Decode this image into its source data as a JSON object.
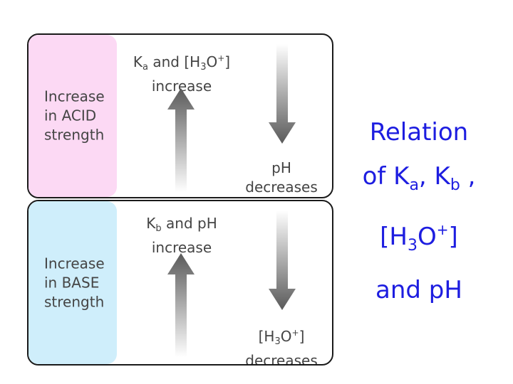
{
  "colors": {
    "acid_bg": "#fcd9f4",
    "base_bg": "#cfeefb",
    "title": "#1d1de0",
    "arrow": "#5e5e5e"
  },
  "acid": {
    "label": "Increase\nin ACID\nstrength",
    "up_text": {
      "k": "K",
      "k_sub": "a",
      "and": " and [H",
      "h_sub": "3",
      "o": "O",
      "plus": "+",
      "close": "]",
      "line2": "increase"
    },
    "down_text": {
      "line1": "pH",
      "line2": "decreases"
    }
  },
  "base": {
    "label": "Increase\nin BASE\nstrength",
    "up_text": {
      "k": "K",
      "k_sub": "b",
      "rest": " and pH",
      "line2": "increase"
    },
    "down_text": {
      "open": "[H",
      "h_sub": "3",
      "o": "O",
      "plus": "+",
      "close": "]",
      "line2": "decreases"
    }
  },
  "title": {
    "line1": "Relation",
    "l2_of": "of K",
    "l2_a": "a",
    "l2_comma": ", K",
    "l2_b": "b",
    "l2_end": " ,",
    "l3_open": "[H",
    "l3_3": "3",
    "l3_o": "O",
    "l3_plus": "+",
    "l3_close": "]",
    "line4": "and pH"
  }
}
